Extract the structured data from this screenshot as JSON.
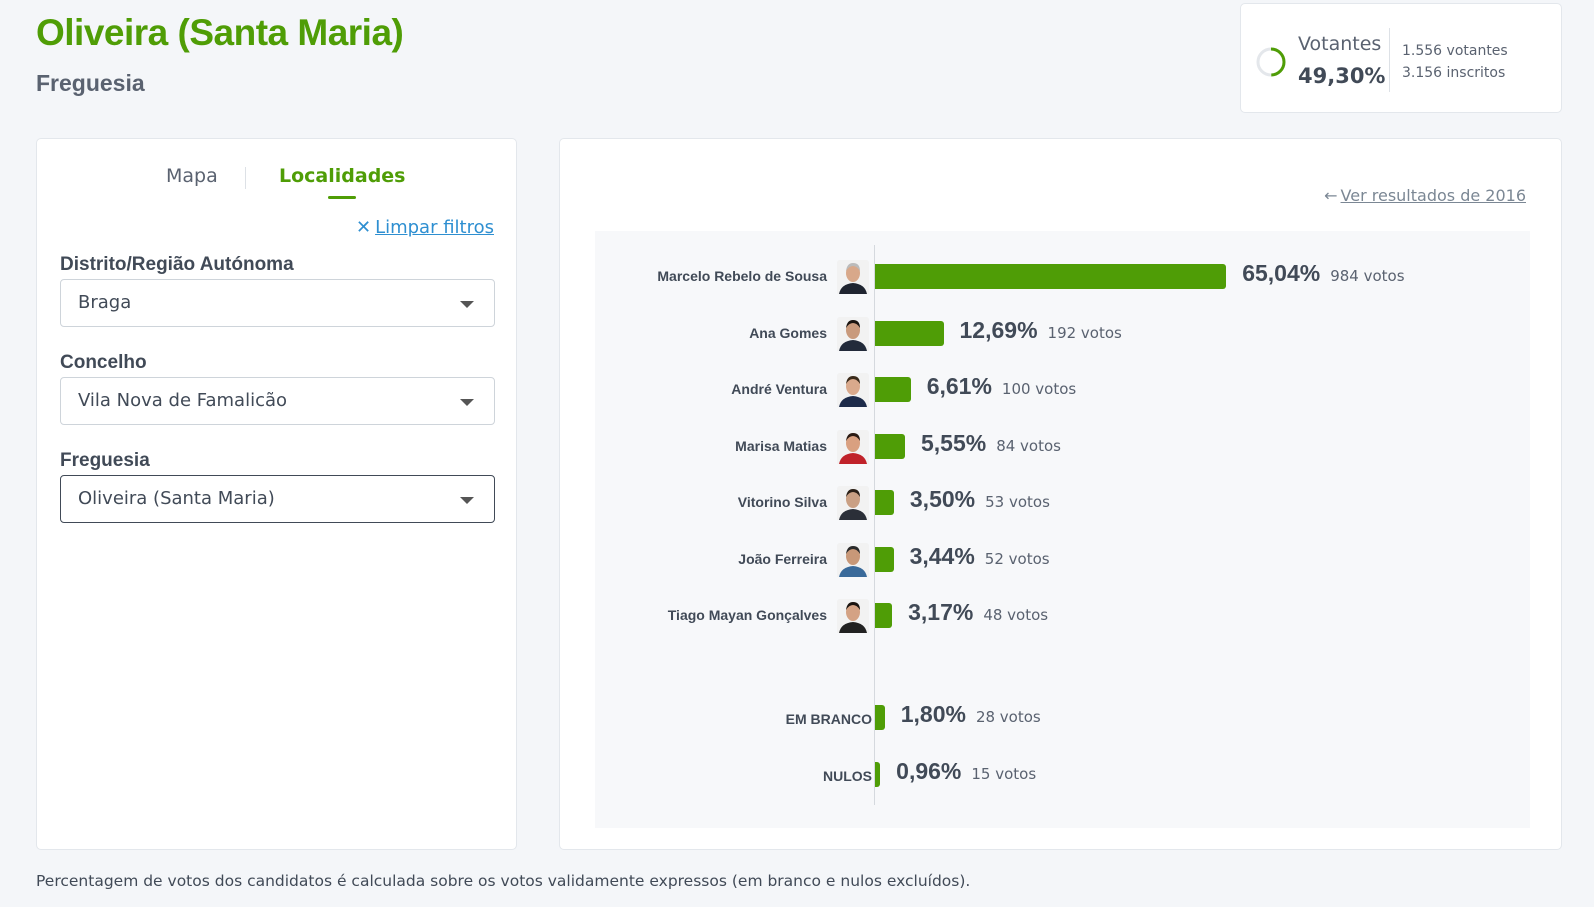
{
  "header": {
    "title": "Oliveira (Santa Maria)",
    "subtitle": "Freguesia"
  },
  "turnout": {
    "label": "Votantes",
    "percent": "49,30%",
    "percent_value": 49.3,
    "voters": "1.556 votantes",
    "registered": "3.156 inscritos",
    "ring_color": "#4f9d06"
  },
  "tabs": [
    {
      "label": "Mapa",
      "active": false
    },
    {
      "label": "Localidades",
      "active": true
    }
  ],
  "filters": {
    "clear_label": "Limpar filtros",
    "fields": [
      {
        "label": "Distrito/Região Autónoma",
        "value": "Braga"
      },
      {
        "label": "Concelho",
        "value": "Vila Nova de Famalicão"
      },
      {
        "label": "Freguesia",
        "value": "Oliveira (Santa Maria)"
      }
    ]
  },
  "results": {
    "previous_link": "Ver resultados de 2016",
    "bar_color": "#4f9d06",
    "candidates": [
      {
        "name": "Marcelo Rebelo de Sousa",
        "percent": "65,04%",
        "value": 65.04,
        "votes": "984 votos"
      },
      {
        "name": "Ana Gomes",
        "percent": "12,69%",
        "value": 12.69,
        "votes": "192 votos"
      },
      {
        "name": "André Ventura",
        "percent": "6,61%",
        "value": 6.61,
        "votes": "100 votos"
      },
      {
        "name": "Marisa Matias",
        "percent": "5,55%",
        "value": 5.55,
        "votes": "84 votos"
      },
      {
        "name": "Vitorino Silva",
        "percent": "3,50%",
        "value": 3.5,
        "votes": "53 votos"
      },
      {
        "name": "João Ferreira",
        "percent": "3,44%",
        "value": 3.44,
        "votes": "52 votos"
      },
      {
        "name": "Tiago Mayan Gonçalves",
        "percent": "3,17%",
        "value": 3.17,
        "votes": "48 votos"
      }
    ],
    "special": [
      {
        "name": "EM BRANCO",
        "percent": "1,80%",
        "value": 1.8,
        "votes": "28 votos"
      },
      {
        "name": "NULOS",
        "percent": "0,96%",
        "value": 0.96,
        "votes": "15 votos"
      }
    ]
  },
  "chart_data": {
    "type": "bar",
    "orientation": "horizontal",
    "categories": [
      "Marcelo Rebelo de Sousa",
      "Ana Gomes",
      "André Ventura",
      "Marisa Matias",
      "Vitorino Silva",
      "João Ferreira",
      "Tiago Mayan Gonçalves",
      "EM BRANCO",
      "NULOS"
    ],
    "values": [
      65.04,
      12.69,
      6.61,
      5.55,
      3.5,
      3.44,
      3.17,
      1.8,
      0.96
    ],
    "votes": [
      984,
      192,
      100,
      84,
      53,
      52,
      48,
      28,
      15
    ],
    "xlim": [
      0,
      100
    ]
  },
  "footer": "Percentagem de votos dos candidatos é calculada sobre os votos validamente expressos (em branco e nulos excluídos)."
}
